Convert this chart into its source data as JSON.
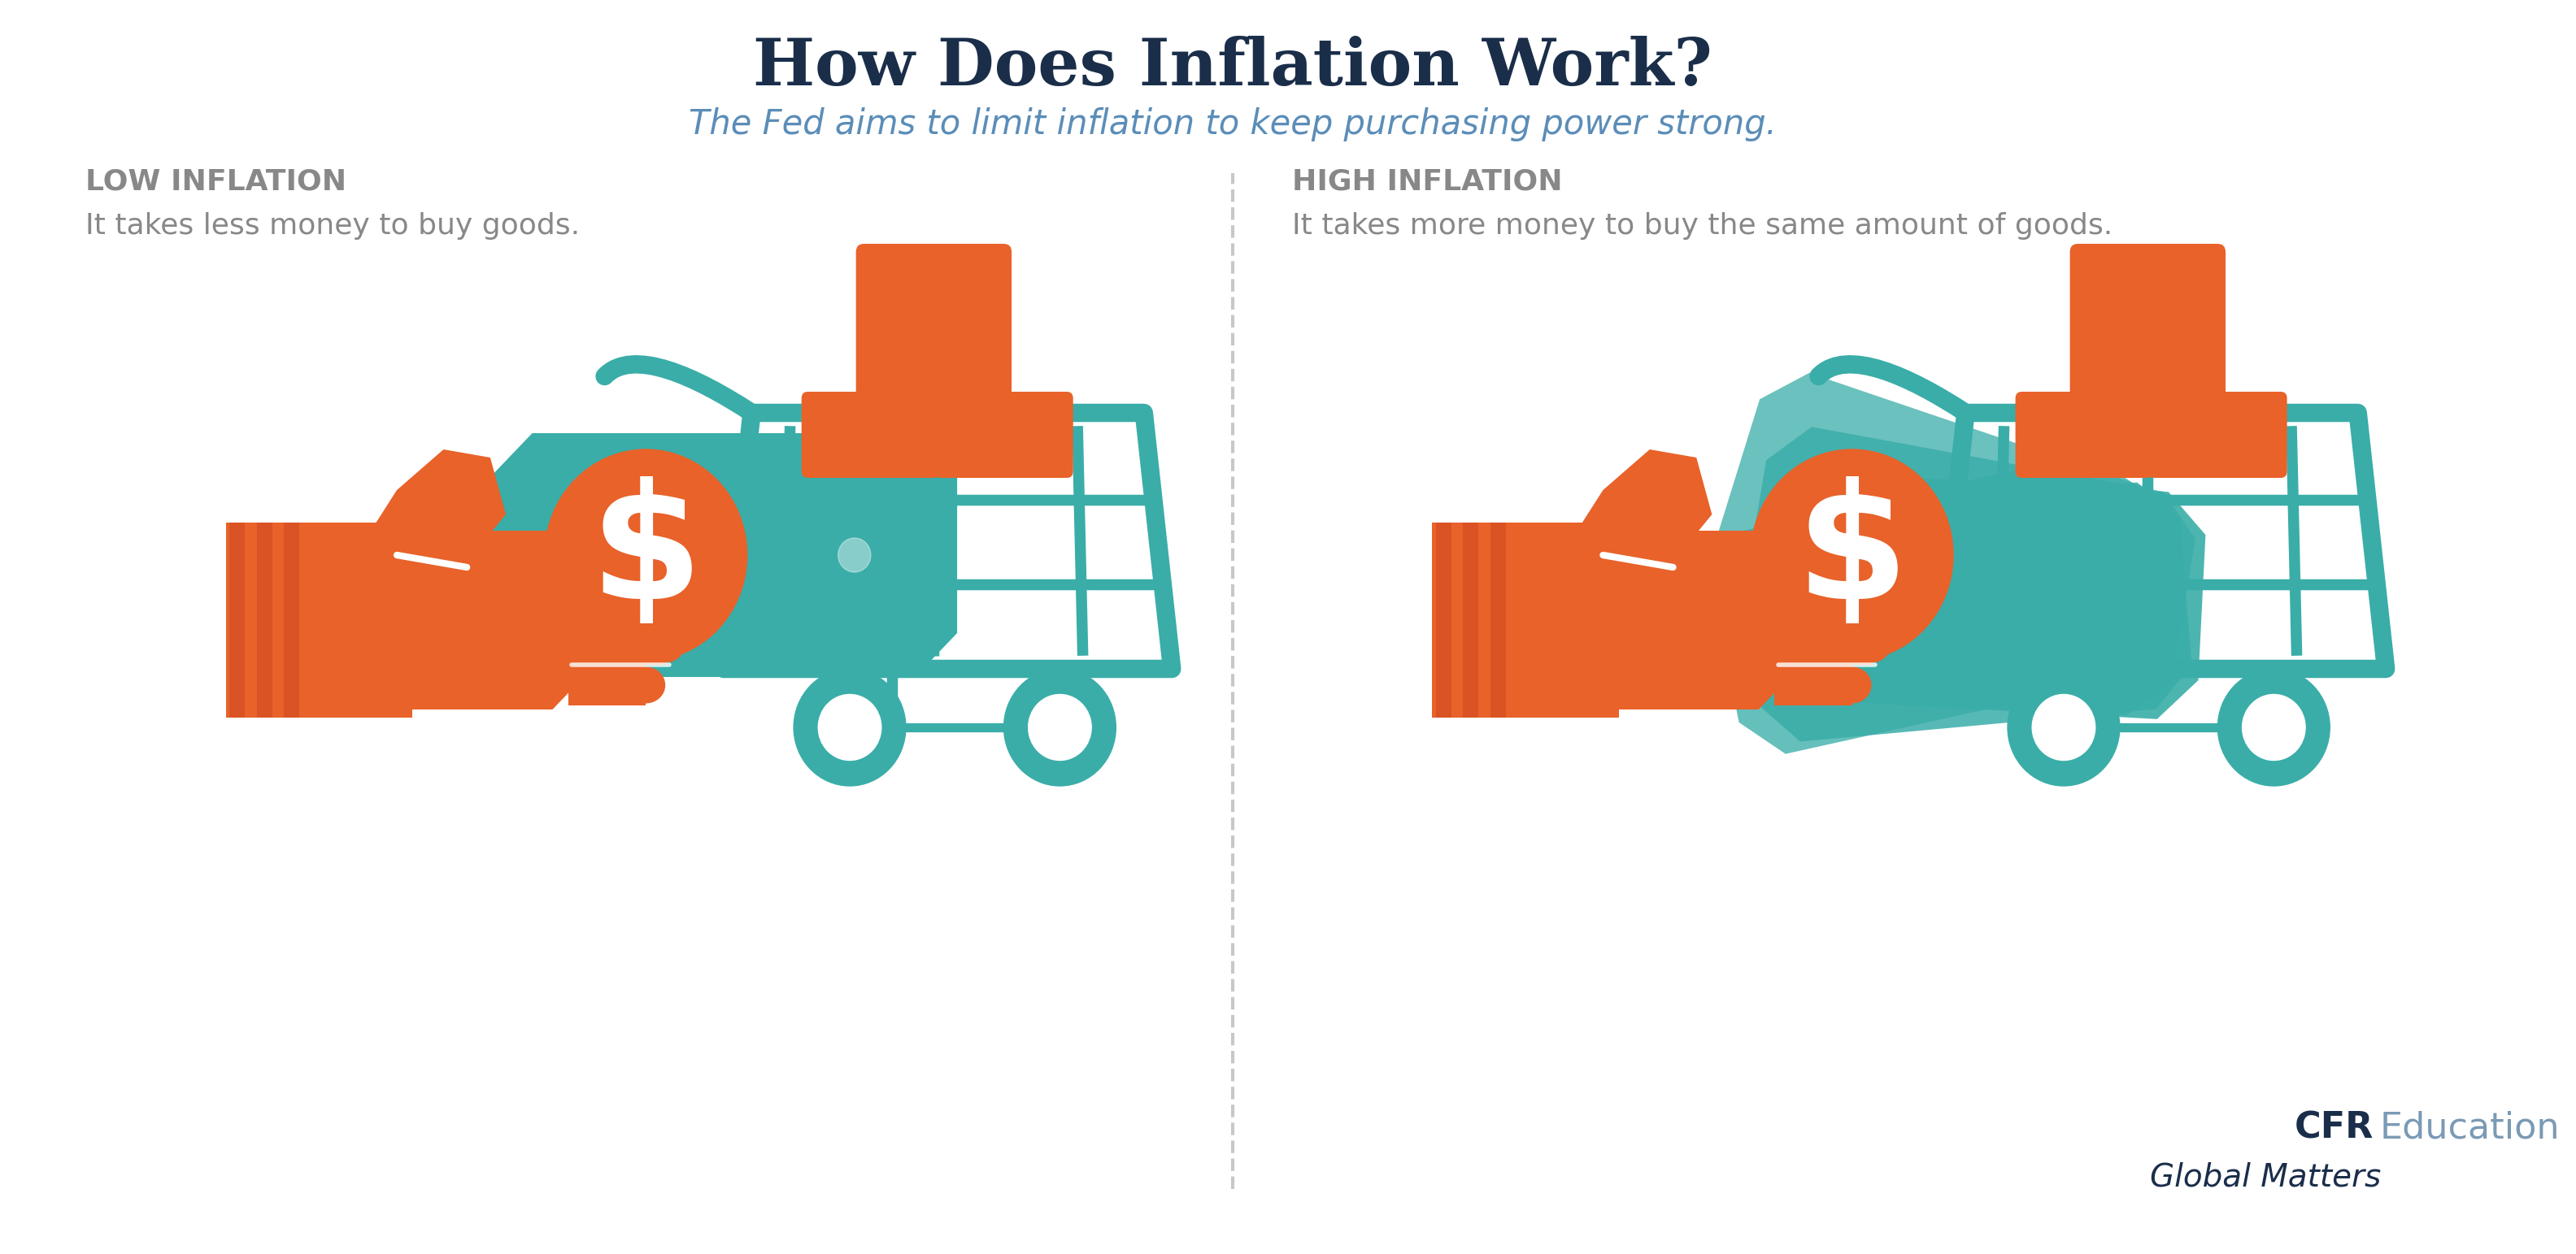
{
  "title": "How Does Inflation Work?",
  "subtitle": "The Fed aims to limit inflation to keep purchasing power strong.",
  "title_color": "#1a2e4a",
  "subtitle_color": "#5b8db8",
  "bg_color": "#ffffff",
  "low_label": "LOW INFLATION",
  "high_label": "HIGH INFLATION",
  "low_desc": "It takes less money to buy goods.",
  "high_desc": "It takes more money to buy the same amount of goods.",
  "label_color": "#888888",
  "desc_color": "#888888",
  "orange_color": "#e8622a",
  "teal_color": "#3aada8",
  "bill_color": "#3aada8",
  "dark_navy": "#1a2e4a",
  "cfr_bold_color": "#1a2e4a",
  "cfr_light_color": "#7a9ab5",
  "divider_color": "#bbbbbb",
  "title_fontsize": 58,
  "subtitle_fontsize": 30,
  "label_fontsize": 26,
  "desc_fontsize": 26,
  "cfr_fontsize": 32
}
